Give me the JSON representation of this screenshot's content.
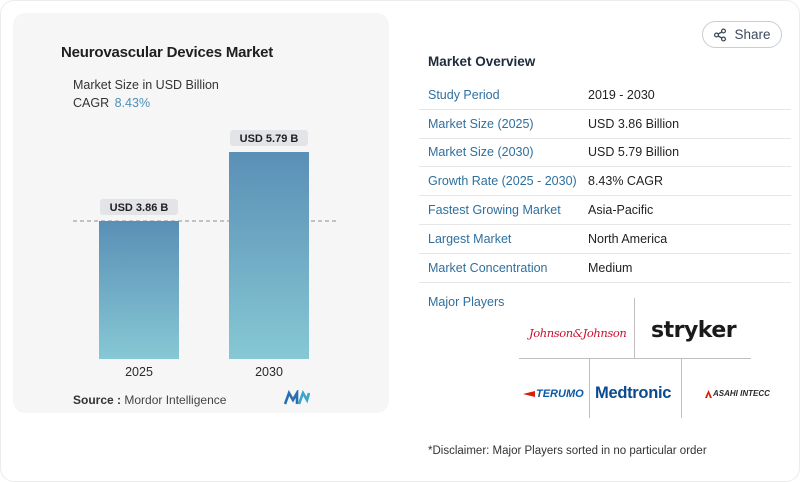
{
  "share": {
    "label": "Share",
    "icon": "share-icon"
  },
  "chart_data": {
    "type": "bar",
    "title": "Neurovascular Devices Market",
    "subtitle": "Market Size in USD Billion",
    "cagr_label": "CAGR",
    "cagr_value": "8.43%",
    "categories": [
      "2025",
      "2030"
    ],
    "values": [
      3.86,
      5.79
    ],
    "data_labels": [
      "USD 3.86 B",
      "USD 5.79 B"
    ],
    "ylim": [
      0,
      5.79
    ],
    "reference_line": 3.86,
    "grid": false,
    "colors": {
      "bar_top": "#5a8fb6",
      "bar_bottom": "#86c8d4",
      "label_bg": "#e2e4e8"
    }
  },
  "source": {
    "label": "Source :",
    "value": "Mordor Intelligence"
  },
  "overview": {
    "title": "Market Overview",
    "rows": [
      {
        "key": "Study Period",
        "value": "2019 - 2030"
      },
      {
        "key": "Market Size (2025)",
        "value": "USD 3.86 Billion"
      },
      {
        "key": "Market Size (2030)",
        "value": "USD 5.79 Billion"
      },
      {
        "key": "Growth Rate (2025 - 2030)",
        "value": "8.43% CAGR"
      },
      {
        "key": "Fastest Growing Market",
        "value": "Asia-Pacific"
      },
      {
        "key": "Largest Market",
        "value": "North America"
      },
      {
        "key": "Market Concentration",
        "value": "Medium"
      }
    ]
  },
  "players": {
    "label": "Major Players",
    "logos": [
      "Johnson&Johnson",
      "stryker",
      "TERUMO",
      "Medtronic",
      "ASAHI INTECC"
    ]
  },
  "disclaimer": "*Disclaimer: Major Players sorted in no particular order"
}
